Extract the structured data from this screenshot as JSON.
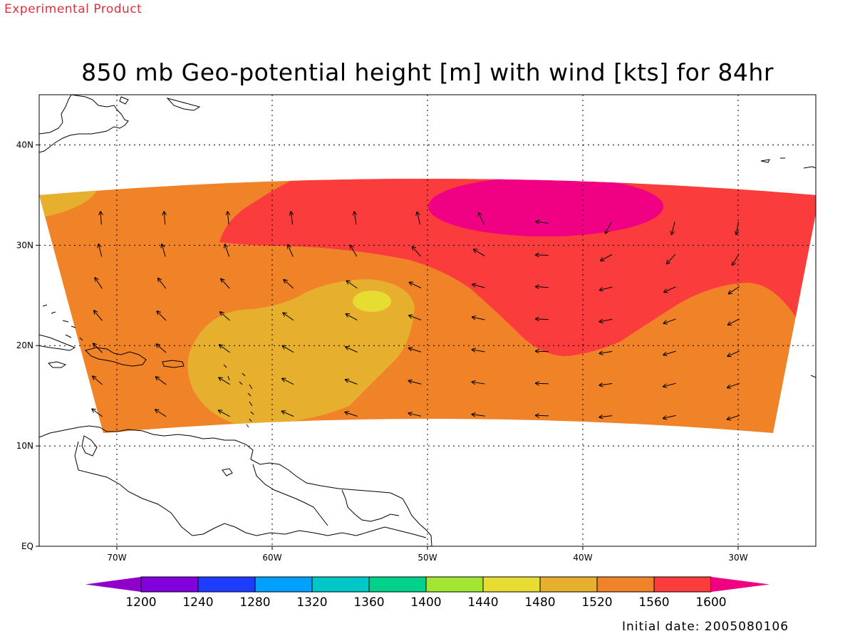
{
  "header": {
    "experimental": "Experimental Product",
    "title": "850 mb Geo-potential height [m] with wind [kts] for 84hr",
    "initial_date": "Initial date: 2005080106"
  },
  "map": {
    "lon_labels": [
      "70W",
      "60W",
      "50W",
      "40W",
      "30W"
    ],
    "lat_labels": [
      "40N",
      "30N",
      "20N",
      "10N",
      "EQ"
    ],
    "lon_ticks": [
      -70,
      -60,
      -50,
      -40,
      -30
    ],
    "lat_ticks": [
      40,
      30,
      20,
      10,
      0
    ],
    "lon_range": [
      -75,
      -25
    ],
    "lat_range": [
      0,
      45
    ],
    "grid": "dotted"
  },
  "colorbar": {
    "labels": [
      "1200",
      "1240",
      "1280",
      "1320",
      "1360",
      "1400",
      "1440",
      "1480",
      "1520",
      "1560",
      "1600"
    ],
    "colors": [
      "#9000c8",
      "#8200dc",
      "#1e3cff",
      "#00a0ff",
      "#00c8c8",
      "#00d28c",
      "#a0e632",
      "#e6dc32",
      "#e6af2d",
      "#f08228",
      "#fa3c3c",
      "#f00082"
    ]
  },
  "chart_data": {
    "type": "heatmap",
    "title": "850 mb Geo-potential height [m] with wind [kts] for 84hr",
    "variable": "850 mb geopotential height (m) with wind vectors (kts)",
    "levels": [
      1200,
      1240,
      1280,
      1320,
      1360,
      1400,
      1440,
      1480,
      1520,
      1560,
      1600
    ],
    "regions": [
      {
        "range": "1520-1560",
        "color": "#f08228",
        "area": "background of the model domain"
      },
      {
        "range": "1480-1520",
        "color": "#e6af2d",
        "area": "Caribbean / eastern Antilles, approx 13N-27N, 52W-64W; and northwest corner near 33N 75W"
      },
      {
        "range": "1440-1480",
        "color": "#e6dc32",
        "area": "small patch near 24N 53W"
      },
      {
        "range": "1560-1600",
        "color": "#fa3c3c",
        "area": "north-central and east, approx 20N-37N, 27W-63W"
      },
      {
        "range": ">1600",
        "color": "#f00082",
        "area": "high centre near 33N-36N, 36W-45W"
      }
    ],
    "wind_field": "anticyclonic circulation around high centre near 34N 42W",
    "initial_date": "2005080106",
    "forecast_hour": "84hr"
  }
}
